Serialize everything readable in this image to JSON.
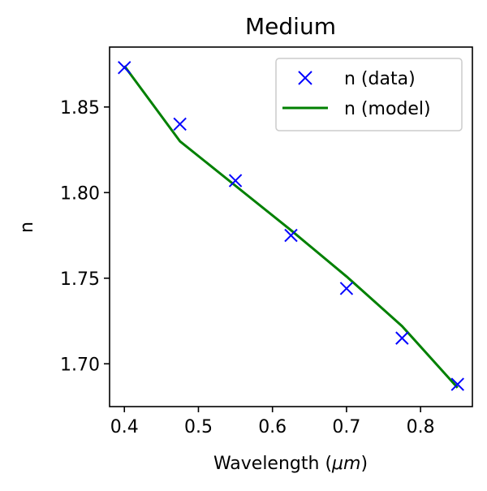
{
  "chart_data": {
    "type": "line",
    "title": "Medium",
    "xlabel_prefix": "Wavelength (",
    "xlabel_unit": "μm",
    "xlabel_suffix": ")",
    "ylabel": "n",
    "xlim": [
      0.38,
      0.87
    ],
    "ylim": [
      1.675,
      1.885
    ],
    "xticks": [
      0.4,
      0.5,
      0.6,
      0.7,
      0.8
    ],
    "xtick_labels": [
      "0.4",
      "0.5",
      "0.6",
      "0.7",
      "0.8"
    ],
    "yticks": [
      1.7,
      1.75,
      1.8,
      1.85
    ],
    "ytick_labels": [
      "1.70",
      "1.75",
      "1.80",
      "1.85"
    ],
    "grid": false,
    "legend_position": "top-right",
    "series": [
      {
        "name": "n (data)",
        "style": "markers",
        "marker": "x",
        "color": "#0000ff",
        "x": [
          0.4,
          0.475,
          0.55,
          0.625,
          0.7,
          0.775,
          0.85
        ],
        "y": [
          1.873,
          1.84,
          1.807,
          1.775,
          1.744,
          1.715,
          1.688
        ]
      },
      {
        "name": "n (model)",
        "style": "line",
        "color": "#008000",
        "x": [
          0.4,
          0.475,
          0.55,
          0.625,
          0.7,
          0.775,
          0.85
        ],
        "y": [
          1.874,
          1.83,
          1.804,
          1.778,
          1.751,
          1.722,
          1.686
        ]
      }
    ]
  }
}
